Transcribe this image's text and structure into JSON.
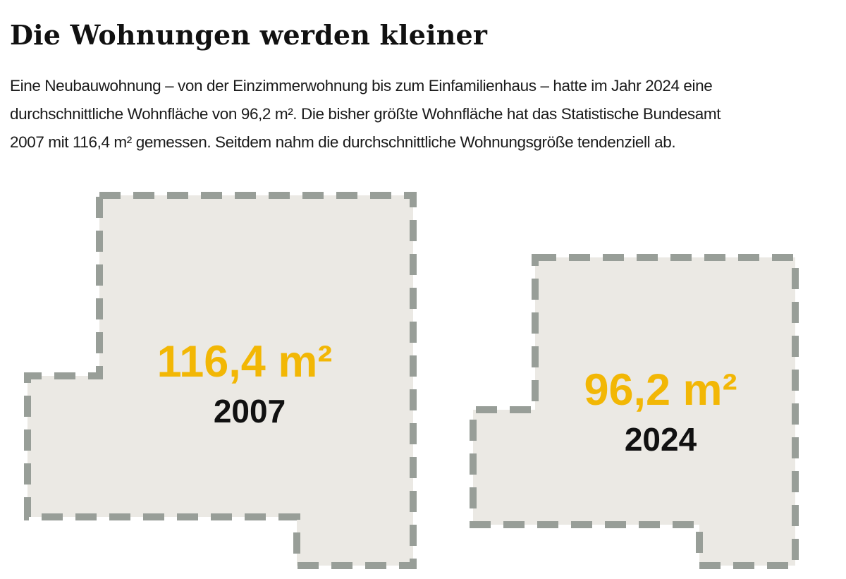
{
  "headline": "Die Wohnungen werden kleiner",
  "intro_lines": [
    "Eine Neubauwohnung – von der Einzimmerwohnung bis zum Einfamilienhaus – hatte im Jahr 2024 eine",
    "durchschnittliche Wohnfläche von 96,2 m². Die bisher größte Wohnfläche hat das Statistische Bundesamt",
    "2007 mit 116,4 m² gemessen. Seitdem nahm die durchschnittliche Wohnungsgröße tendenziell ab."
  ],
  "floorplans": [
    {
      "area_label": "116,4 m²",
      "year_label": "2007",
      "area_value": 116.4
    },
    {
      "area_label": "96,2 m²",
      "year_label": "2024",
      "area_value": 96.2
    }
  ],
  "colors": {
    "fill": "#ebe9e4",
    "dash": "#989e98",
    "area_text": "#f2b705",
    "year_text": "#111111"
  }
}
